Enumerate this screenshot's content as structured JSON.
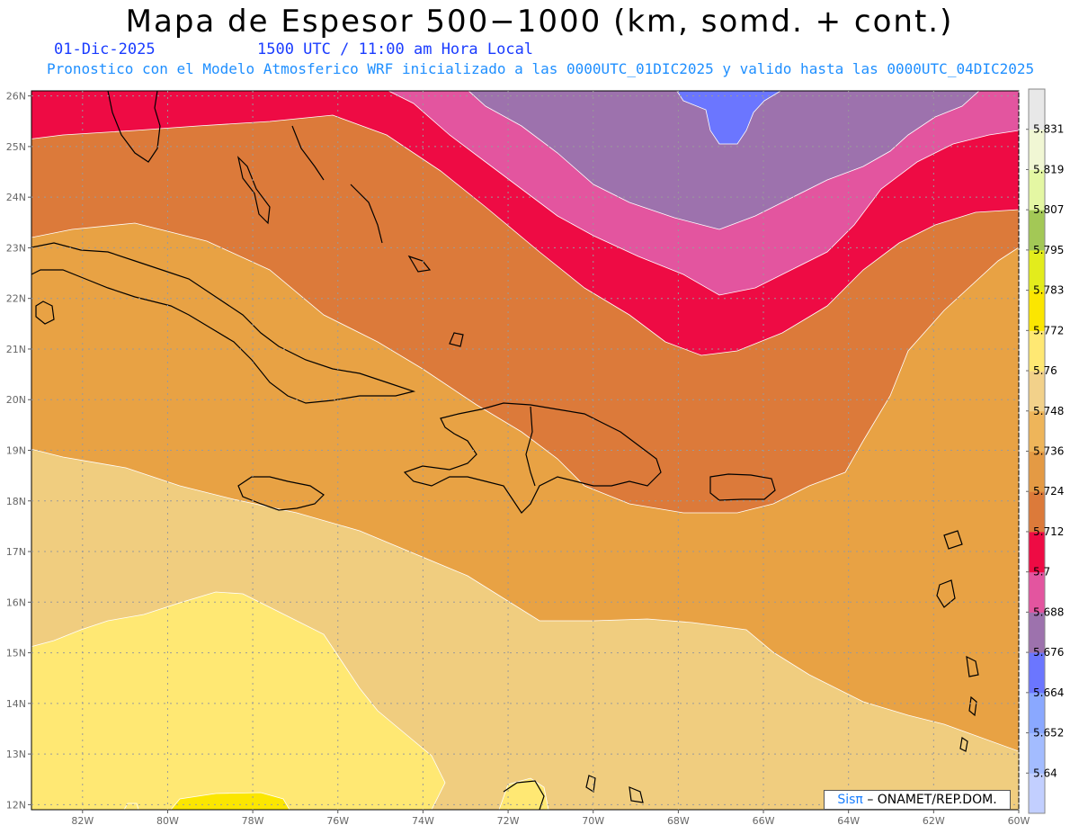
{
  "header": {
    "title": "Mapa de Espesor 500−1000 (km, somd. + cont.)",
    "date": "01-Dic-2025",
    "time": "1500 UTC / 11:00 am Hora Local",
    "subtitle": "Pronostico con el Modelo Atmosferico WRF inicializado a las 0000UTC_01DIC2025 y valido hasta las  0000UTC_04DIC2025"
  },
  "map": {
    "lon_range": [
      -83.2,
      -60
    ],
    "lat_range": [
      11.9,
      26.1
    ],
    "lon_ticks": [
      "82W",
      "80W",
      "78W",
      "76W",
      "74W",
      "72W",
      "70W",
      "68W",
      "66W",
      "64W",
      "62W",
      "60W"
    ],
    "lat_ticks": [
      "12N",
      "13N",
      "14N",
      "15N",
      "16N",
      "17N",
      "18N",
      "19N",
      "20N",
      "21N",
      "22N",
      "23N",
      "24N",
      "25N",
      "26N"
    ],
    "grid": "dotted"
  },
  "colorbar": {
    "colors": [
      "#c2cfff",
      "#a3bcff",
      "#8aa8ff",
      "#6b76ff",
      "#9d72ad",
      "#e3559f",
      "#ee0b44",
      "#dc7a3a",
      "#e49a44",
      "#eeb55a",
      "#f2d18a",
      "#ffe873",
      "#fbe601",
      "#e3ec1c",
      "#a3c856",
      "#e4f7a3",
      "#f1f7d4",
      "#e8e8e8"
    ],
    "labels": [
      "5.64",
      "5.652",
      "5.664",
      "5.676",
      "5.688",
      "5.7",
      "5.712",
      "5.724",
      "5.736",
      "5.748",
      "5.76",
      "5.772",
      "5.783",
      "5.795",
      "5.807",
      "5.819",
      "5.831"
    ]
  },
  "credit": {
    "brand": "Sisπ",
    "org": "– ONAMET/REP.DOM."
  }
}
